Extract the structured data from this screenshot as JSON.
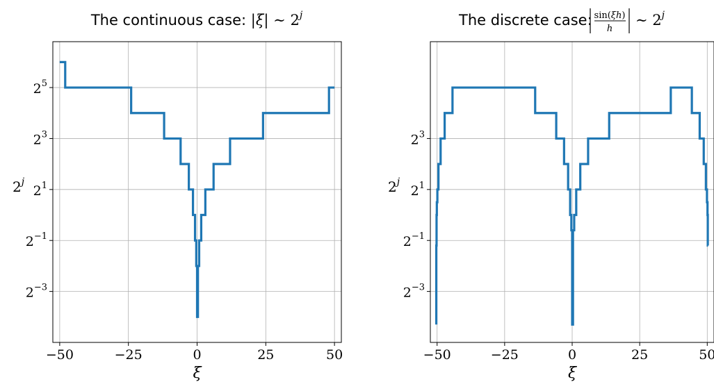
{
  "chart_data": [
    {
      "type": "line",
      "title_prefix": "The continuous case:",
      "title_math": "|ξ| ∼ 2^j",
      "xlabel": "ξ",
      "ylabel": "2^j",
      "xlim": [
        -52.5,
        52.5
      ],
      "ylim_log2": [
        -5.0,
        6.8
      ],
      "x_ticks": [
        -50,
        -25,
        0,
        25,
        50
      ],
      "x_tick_labels": [
        "−50",
        "−25",
        "0",
        "25",
        "50"
      ],
      "y_ticks_log2": [
        -3,
        -1,
        1,
        3,
        5
      ],
      "y_tick_labels": [
        {
          "base": "2",
          "exp": "−3"
        },
        {
          "base": "2",
          "exp": "−1"
        },
        {
          "base": "2",
          "exp": "1"
        },
        {
          "base": "2",
          "exp": "3"
        },
        {
          "base": "2",
          "exp": "5"
        }
      ],
      "grid": true,
      "series": [
        {
          "color": "#1f77b4",
          "x": [
            -50,
            -48,
            -48,
            -24,
            -24,
            -12,
            -12,
            -6,
            -6,
            -3,
            -3,
            -1.5,
            -1.5,
            -0.75,
            -0.75,
            -0.3,
            -0.3,
            0,
            0,
            0.3,
            0.3,
            0.75,
            0.75,
            1.5,
            1.5,
            3,
            3,
            6,
            6,
            12,
            12,
            24,
            24,
            48,
            48,
            50
          ],
          "y_log2": [
            6,
            6,
            5,
            5,
            4,
            4,
            3,
            3,
            2,
            2,
            1,
            1,
            0,
            0,
            -1,
            -1,
            -2,
            -2,
            -4,
            -4,
            -2,
            -2,
            -1,
            -1,
            0,
            0,
            1,
            1,
            2,
            2,
            3,
            3,
            4,
            4,
            5,
            5
          ]
        }
      ]
    },
    {
      "type": "line",
      "title_prefix": "The discrete case:",
      "title_math": "|sin(ξh)/h| ∼ 2^j",
      "xlabel": "ξ",
      "ylabel": "2^j",
      "xlim": [
        -52.5,
        52.5
      ],
      "ylim_log2": [
        -5.0,
        6.8
      ],
      "x_ticks": [
        -50,
        -25,
        0,
        25,
        50
      ],
      "x_tick_labels": [
        "−50",
        "−25",
        "0",
        "25",
        "50"
      ],
      "y_ticks_log2": [
        -3,
        -1,
        1,
        3
      ],
      "y_tick_labels": [
        {
          "base": "2",
          "exp": "−3"
        },
        {
          "base": "2",
          "exp": "−1"
        },
        {
          "base": "2",
          "exp": "1"
        },
        {
          "base": "2",
          "exp": "3"
        }
      ],
      "grid": true,
      "series": [
        {
          "color": "#1f77b4",
          "x": [
            -50.3,
            -50.3,
            -50.2,
            -50.2,
            -50.1,
            -50.1,
            -49.9,
            -49.9,
            -49.5,
            -49.5,
            -48.7,
            -48.7,
            -47.2,
            -47.2,
            -44.3,
            -44.3,
            -36.5,
            -36.5,
            -13.7,
            -13.7,
            -5.9,
            -5.9,
            -3.0,
            -3.0,
            -1.5,
            -1.5,
            -0.75,
            -0.75,
            -0.3,
            -0.3,
            0,
            0,
            0.3,
            0.3,
            0.75,
            0.75,
            1.5,
            1.5,
            3.0,
            3.0,
            5.9,
            5.9,
            13.7,
            13.7,
            36.5,
            36.5,
            44.3,
            44.3,
            47.2,
            47.2,
            48.7,
            48.7,
            49.5,
            49.5,
            49.9,
            49.9,
            50.1,
            50.1,
            50.2,
            50.2,
            50.3
          ],
          "y_log2": [
            -4.3,
            -1.2,
            -1.2,
            0,
            0,
            0.5,
            0.5,
            1,
            1,
            2,
            2,
            3,
            3,
            4,
            4,
            5,
            5,
            5,
            5,
            4,
            4,
            3,
            3,
            2,
            2,
            1,
            1,
            0,
            0,
            -0.6,
            -0.6,
            -4.3,
            -4.3,
            -0.6,
            -0.6,
            0,
            0,
            1,
            1,
            2,
            2,
            3,
            3,
            4,
            4,
            5,
            5,
            4,
            4,
            3,
            3,
            2,
            2,
            1,
            1,
            0.5,
            0.5,
            0,
            0,
            -1.2,
            -1.2
          ]
        }
      ]
    }
  ]
}
